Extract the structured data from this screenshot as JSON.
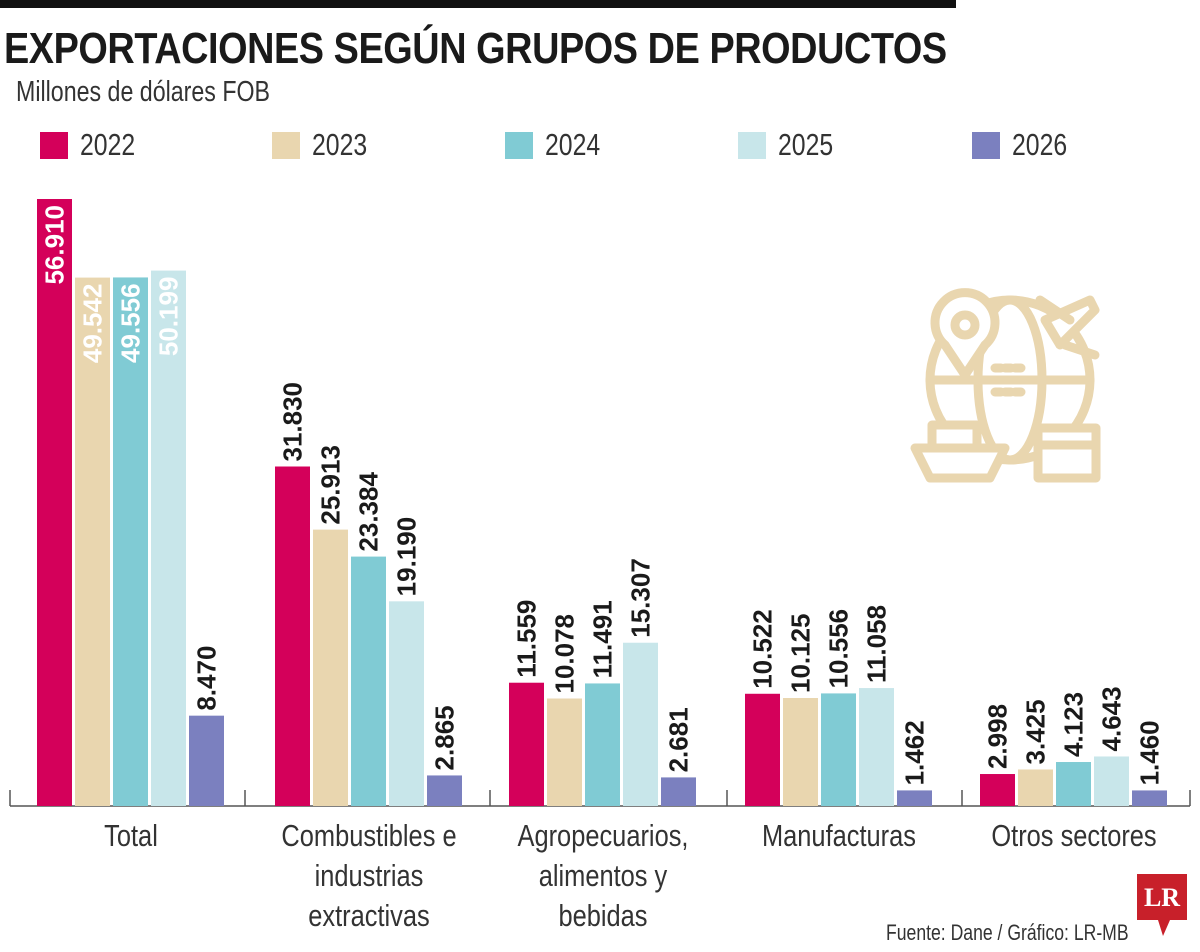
{
  "header": {
    "title": "EXPORTACIONES SEGÚN GRUPOS DE PRODUCTOS",
    "subtitle": "Millones de dólares FOB"
  },
  "chart_data": {
    "type": "bar",
    "title": "EXPORTACIONES SEGÚN GRUPOS DE PRODUCTOS",
    "ylabel": "Millones de dólares FOB",
    "xlabel": "",
    "categories": [
      "Total",
      "Combustibles e industrias extractivas",
      "Agropecuarios, alimentos y bebidas",
      "Manufacturas",
      "Otros sectores"
    ],
    "category_lines": [
      [
        "Total"
      ],
      [
        "Combustibles e",
        "industrias extractivas"
      ],
      [
        "Agropecuarios,",
        "alimentos y bebidas"
      ],
      [
        "Manufacturas"
      ],
      [
        "Otros sectores"
      ]
    ],
    "series": [
      {
        "name": "2022",
        "color": "#d4005a",
        "values": [
          56910,
          31830,
          11559,
          10522,
          2998
        ],
        "labels": [
          "56.910",
          "31.830",
          "11.559",
          "10.522",
          "2.998"
        ]
      },
      {
        "name": "2023",
        "color": "#e9d6af",
        "values": [
          49542,
          25913,
          10078,
          10125,
          3425
        ],
        "labels": [
          "49.542",
          "25.913",
          "10.078",
          "10.125",
          "3.425"
        ]
      },
      {
        "name": "2024",
        "color": "#80cbd4",
        "values": [
          49556,
          23384,
          11491,
          10556,
          4123
        ],
        "labels": [
          "49.556",
          "23.384",
          "11.491",
          "10.556",
          "4.123"
        ]
      },
      {
        "name": "2025",
        "color": "#c8e6ea",
        "values": [
          50199,
          19190,
          15307,
          11058,
          4643
        ],
        "labels": [
          "50.199",
          "19.190",
          "15.307",
          "11.058",
          "4.643"
        ]
      },
      {
        "name": "2026",
        "color": "#7b80bf",
        "values": [
          8470,
          2865,
          2681,
          1462,
          1460
        ],
        "labels": [
          "8.470",
          "2.865",
          "2.681",
          "1.462",
          "1.460"
        ]
      }
    ],
    "ylim": [
      0,
      57000
    ],
    "grid": false,
    "legend": "top",
    "data_labels": "rotated"
  },
  "footer": {
    "source": "Fuente:  Dane / Gráfico: LR-MB",
    "logo": "LR"
  },
  "colors": {
    "logo": "#c8202a",
    "icon": "#e9d6af"
  }
}
